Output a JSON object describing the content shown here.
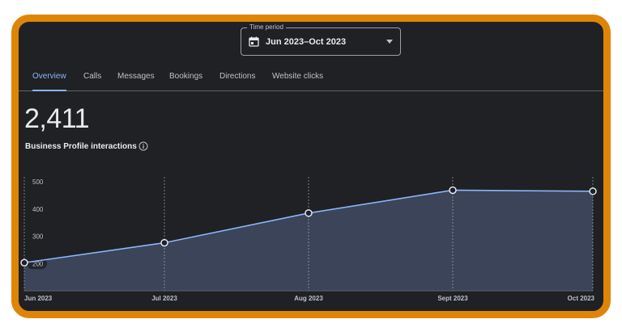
{
  "time_period": {
    "label": "Time period",
    "value": "Jun 2023–Oct 2023",
    "icon": "calendar-icon",
    "dropdown_icon": "chevron-down-icon"
  },
  "tabs": [
    {
      "label": "Overview",
      "active": true
    },
    {
      "label": "Calls",
      "active": false
    },
    {
      "label": "Messages",
      "active": false
    },
    {
      "label": "Bookings",
      "active": false
    },
    {
      "label": "Directions",
      "active": false
    },
    {
      "label": "Website clicks",
      "active": false
    }
  ],
  "summary": {
    "total": "2,411",
    "label": "Business Profile interactions",
    "info_icon": "info-icon"
  },
  "colors": {
    "frame": "#de8508",
    "background": "#202124",
    "accent": "#8ab4f8",
    "area_fill": "#3b4458",
    "line": "#8ab4f8"
  },
  "chart_data": {
    "type": "area",
    "x": [
      "Jun 2023",
      "Jul 2023",
      "Aug 2023",
      "Sept 2023",
      "Oct 2023"
    ],
    "series": [
      {
        "values": [
          203,
          276,
          385,
          469,
          465
        ]
      }
    ],
    "yticks": [
      "500",
      "400",
      "300",
      "200"
    ],
    "ylim": [
      100,
      500
    ],
    "grid": "vertical dashed"
  }
}
